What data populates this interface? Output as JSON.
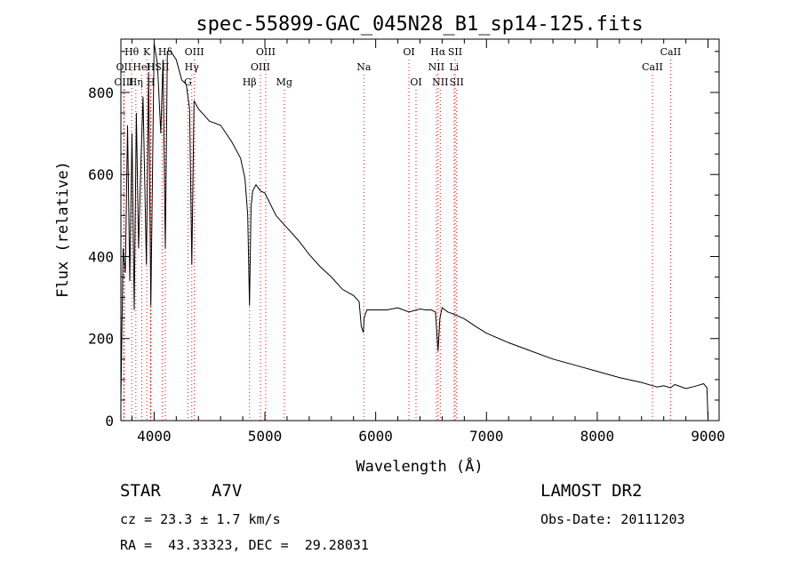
{
  "chart_data": {
    "type": "line",
    "title": "spec-55899-GAC_045N28_B1_sp14-125.fits",
    "xlabel": "Wavelength (Å)",
    "ylabel": "Flux (relative)",
    "xlim": [
      3700,
      9100
    ],
    "ylim": [
      0,
      930
    ],
    "x_ticks": [
      4000,
      5000,
      6000,
      7000,
      8000,
      9000
    ],
    "y_ticks": [
      0,
      200,
      400,
      600,
      800
    ],
    "grid": false,
    "series": [
      {
        "x": [
          3700,
          3720,
          3740,
          3760,
          3780,
          3800,
          3820,
          3840,
          3860,
          3880,
          3900,
          3930,
          3950,
          3970,
          4000,
          4030,
          4060,
          4080,
          4101,
          4120,
          4150,
          4200,
          4250,
          4290,
          4320,
          4340,
          4360,
          4400,
          4500,
          4600,
          4700,
          4780,
          4820,
          4845,
          4861,
          4875,
          4890,
          4920,
          4960,
          5000,
          5100,
          5200,
          5300,
          5400,
          5500,
          5600,
          5700,
          5800,
          5850,
          5870,
          5889,
          5895,
          5920,
          5960,
          6000,
          6050,
          6100,
          6200,
          6300,
          6400,
          6450,
          6500,
          6540,
          6563,
          6580,
          6600,
          6650,
          6700,
          6800,
          6900,
          7000,
          7200,
          7400,
          7600,
          7800,
          8000,
          8200,
          8400,
          8500,
          8542,
          8600,
          8662,
          8700,
          8800,
          8900,
          8960,
          8990,
          9000
        ],
        "y": [
          50,
          420,
          360,
          720,
          340,
          700,
          270,
          750,
          420,
          620,
          790,
          380,
          850,
          280,
          920,
          870,
          700,
          880,
          420,
          900,
          900,
          880,
          830,
          820,
          760,
          380,
          780,
          760,
          730,
          720,
          680,
          640,
          590,
          500,
          280,
          520,
          560,
          575,
          560,
          555,
          500,
          470,
          440,
          405,
          375,
          350,
          320,
          305,
          290,
          230,
          215,
          250,
          270,
          270,
          270,
          270,
          270,
          275,
          265,
          272,
          270,
          270,
          265,
          170,
          250,
          275,
          265,
          260,
          248,
          230,
          213,
          190,
          170,
          150,
          135,
          120,
          105,
          93,
          85,
          82,
          85,
          80,
          88,
          78,
          85,
          90,
          80,
          5
        ]
      }
    ],
    "spectral_lines": [
      {
        "label": "Hθ",
        "x": 3798,
        "row": 1
      },
      {
        "label": "K",
        "x": 3934,
        "row": 1
      },
      {
        "label": "Hδ",
        "x": 4101,
        "row": 1
      },
      {
        "label": "OIII",
        "x": 4363,
        "row": 1
      },
      {
        "label": "OIII",
        "x": 5007,
        "row": 1
      },
      {
        "label": "OI",
        "x": 6300,
        "row": 1
      },
      {
        "label": "Hα",
        "x": 6563,
        "row": 1
      },
      {
        "label": "SII",
        "x": 6717,
        "row": 1
      },
      {
        "label": "CaII",
        "x": 8662,
        "row": 1
      },
      {
        "label": "OII",
        "x": 3727,
        "row": 2
      },
      {
        "label": "HeI",
        "x": 3889,
        "row": 2
      },
      {
        "label": "H",
        "x": 3969,
        "row": 2
      },
      {
        "label": "SII",
        "x": 4072,
        "row": 2
      },
      {
        "label": "Hγ",
        "x": 4340,
        "row": 2
      },
      {
        "label": "OIII",
        "x": 4959,
        "row": 2
      },
      {
        "label": "Na",
        "x": 5893,
        "row": 2
      },
      {
        "label": "NII",
        "x": 6548,
        "row": 2
      },
      {
        "label": "Li",
        "x": 6708,
        "row": 2
      },
      {
        "label": "CaII",
        "x": 8498,
        "row": 2
      },
      {
        "label": "OIII",
        "x": 3727,
        "row": 3
      },
      {
        "label": "Hη",
        "x": 3835,
        "row": 3
      },
      {
        "label": "H",
        "x": 3970,
        "row": 3
      },
      {
        "label": "G",
        "x": 4305,
        "row": 3
      },
      {
        "label": "Hβ",
        "x": 4861,
        "row": 3
      },
      {
        "label": "Mg",
        "x": 5175,
        "row": 3
      },
      {
        "label": "OI",
        "x": 6364,
        "row": 3
      },
      {
        "label": "NII",
        "x": 6583,
        "row": 3
      },
      {
        "label": "SII",
        "x": 6731,
        "row": 3
      }
    ],
    "line_marker_color": "#ff0000"
  },
  "info": {
    "class_label": "STAR",
    "subclass": "A7V",
    "survey": "LAMOST DR2",
    "velocity": "cz = 23.3 ± 1.7 km/s",
    "obs_date": "Obs-Date: 20111203",
    "coords": "RA =  43.33323, DEC =  29.28031"
  }
}
